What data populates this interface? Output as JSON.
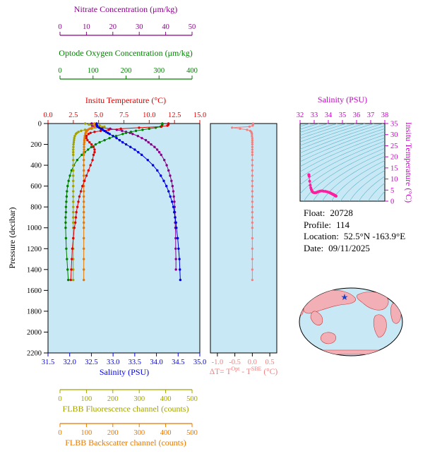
{
  "info": {
    "lines": [
      {
        "label": "Float:",
        "value": "20728"
      },
      {
        "label": "Profile:",
        "value": "114"
      },
      {
        "label": "Location:",
        "value": "52.5°N  -163.9°E"
      },
      {
        "label": "Date:",
        "value": "09/11/2025"
      }
    ]
  },
  "chart_data": {
    "type": "line",
    "main_profile": {
      "ylabel": "Pressure (decibar)",
      "ylim": [
        0,
        2200
      ],
      "yticks": [
        0,
        200,
        400,
        600,
        800,
        1000,
        1200,
        1400,
        1600,
        1800,
        2000,
        2200
      ],
      "ytick_labels": [
        "0",
        "200",
        "400",
        "600",
        "800",
        "1000",
        "1200",
        "1400",
        "1600",
        "1800",
        "2000",
        "2200"
      ],
      "background": "#c9e8f6",
      "pressure": [
        0,
        10,
        20,
        30,
        40,
        50,
        60,
        70,
        80,
        90,
        100,
        120,
        140,
        160,
        180,
        200,
        225,
        250,
        275,
        300,
        350,
        400,
        450,
        500,
        550,
        600,
        650,
        700,
        750,
        800,
        850,
        900,
        950,
        1000,
        1100,
        1200,
        1300,
        1400,
        1500
      ],
      "axes": {
        "nitrate": {
          "title": "Nitrate Concentration (μm/kg)",
          "color": "#8b008b",
          "range": [
            0,
            50
          ],
          "ticks": [
            0,
            10,
            20,
            30,
            40,
            50
          ],
          "tick_labels": [
            "0",
            "10",
            "20",
            "30",
            "40",
            "50"
          ]
        },
        "oxygen": {
          "title": "Optode Oxygen Concentration (μm/kg)",
          "color": "#008000",
          "range": [
            0,
            400
          ],
          "ticks": [
            0,
            100,
            200,
            300,
            400
          ],
          "tick_labels": [
            "0",
            "100",
            "200",
            "300",
            "400"
          ]
        },
        "temperature": {
          "title": "Insitu Temperature (°C)",
          "color": "#e60000",
          "range": [
            0,
            15
          ],
          "ticks": [
            0,
            2.5,
            5,
            7.5,
            10,
            12.5,
            15
          ],
          "tick_labels": [
            "0.0",
            "2.5",
            "5.0",
            "7.5",
            "10.0",
            "12.5",
            "15.0"
          ]
        },
        "salinity": {
          "title": "Salinity (PSU)",
          "color": "#0000dd",
          "range": [
            31.5,
            35
          ],
          "ticks": [
            31.5,
            32,
            32.5,
            33,
            33.5,
            34,
            34.5,
            35
          ],
          "tick_labels": [
            "31.5",
            "32.0",
            "32.5",
            "33.0",
            "33.5",
            "34.0",
            "34.5",
            "35.0"
          ]
        },
        "fluorescence": {
          "title": "FLBB Fluorescence channel (counts)",
          "color": "#a3a300",
          "range": [
            0,
            500
          ],
          "ticks": [
            0,
            100,
            200,
            300,
            400,
            500
          ],
          "tick_labels": [
            "0",
            "100",
            "200",
            "300",
            "400",
            "500"
          ]
        },
        "backscatter": {
          "title": "FLBB Backscatter channel (counts)",
          "color": "#e87800",
          "range": [
            0,
            500
          ],
          "ticks": [
            0,
            100,
            200,
            300,
            400,
            500
          ],
          "tick_labels": [
            "0",
            "100",
            "200",
            "300",
            "400",
            "500"
          ]
        }
      },
      "series": [
        {
          "name": "Nitrate",
          "axis": "nitrate",
          "color": "#8b008b",
          "values": [
            12,
            12,
            12.2,
            13,
            16,
            19,
            21.5,
            23.5,
            25,
            26.5,
            27.5,
            29.5,
            31,
            32.5,
            33.5,
            34.5,
            35.8,
            36.8,
            37.6,
            38.3,
            39.5,
            40.4,
            41.1,
            41.7,
            42.2,
            42.6,
            42.9,
            43.1,
            43.3,
            43.4,
            43.5,
            43.6,
            43.6,
            43.7,
            43.8,
            43.8,
            43.9,
            43.9,
            null
          ]
        },
        {
          "name": "Optode Oxygen",
          "axis": "oxygen",
          "color": "#008000",
          "values": [
            310,
            310,
            309,
            305,
            290,
            270,
            250,
            230,
            215,
            200,
            190,
            170,
            150,
            135,
            120,
            108,
            95,
            85,
            75,
            66,
            52,
            42,
            35,
            30,
            26,
            23,
            21,
            20,
            19,
            18,
            18,
            17,
            17,
            17,
            18,
            19,
            21,
            23,
            25
          ]
        },
        {
          "name": "FLBB Fluorescence",
          "axis": "fluorescence",
          "color": "#a3a300",
          "values": [
            95,
            110,
            150,
            168,
            150,
            120,
            95,
            80,
            70,
            64,
            60,
            56,
            54,
            53,
            52,
            51,
            50.5,
            50,
            50,
            50,
            50,
            50,
            50,
            50,
            50,
            50,
            50,
            50,
            50,
            50,
            50,
            50,
            50,
            50,
            50,
            50,
            50,
            50,
            50
          ]
        },
        {
          "name": "FLBB Backscatter",
          "axis": "backscatter",
          "color": "#e87800",
          "values": [
            130,
            134,
            140,
            132,
            120,
            112,
            106,
            102,
            99,
            97,
            96,
            94,
            93,
            92,
            92,
            91,
            91,
            91,
            90,
            90,
            90,
            90,
            90,
            90,
            90,
            90,
            90,
            90,
            90,
            90,
            90,
            90,
            90,
            90,
            90,
            90,
            90,
            90,
            90
          ]
        },
        {
          "name": "Insitu Temperature",
          "axis": "temperature",
          "color": "#e60000",
          "values": [
            11.9,
            11.9,
            11.8,
            11.2,
            9.0,
            7.2,
            6.0,
            5.2,
            4.6,
            4.2,
            4.0,
            3.8,
            3.8,
            3.9,
            4.1,
            4.3,
            4.5,
            4.6,
            4.6,
            4.5,
            4.4,
            4.2,
            4.0,
            3.8,
            3.6,
            3.4,
            3.25,
            3.1,
            3.0,
            2.9,
            2.8,
            2.75,
            2.7,
            2.6,
            2.5,
            2.4,
            2.35,
            2.3,
            2.25
          ]
        },
        {
          "name": "Salinity",
          "axis": "salinity",
          "color": "#0000dd",
          "values": [
            32.62,
            32.62,
            32.63,
            32.64,
            32.68,
            32.72,
            32.76,
            32.8,
            32.84,
            32.88,
            32.92,
            33.0,
            33.08,
            33.15,
            33.22,
            33.3,
            33.4,
            33.5,
            33.58,
            33.66,
            33.8,
            33.92,
            34.02,
            34.1,
            34.17,
            34.23,
            34.28,
            34.32,
            34.36,
            34.39,
            34.41,
            34.43,
            34.45,
            34.46,
            34.49,
            34.51,
            34.53,
            34.54,
            34.55
          ]
        }
      ]
    },
    "delta_panel": {
      "title_t1": "ΔT= T",
      "title_sup1": "Opt",
      "title_t2": " - T",
      "title_sup2": "SBE",
      "title_t3": " (°C)",
      "color": "#f08080",
      "background": "#c9e8f6",
      "xlim": [
        -1.2,
        0.7
      ],
      "xticks": [
        -1.0,
        -0.5,
        0.0,
        0.5
      ],
      "xtick_labels": [
        "-1.0",
        "-0.5",
        "0.0",
        "0.5"
      ],
      "values": [
        0.02,
        0.02,
        0.01,
        -0.08,
        -0.58,
        -0.35,
        -0.15,
        -0.06,
        -0.03,
        -0.02,
        -0.01,
        -0.01,
        0,
        0,
        0,
        0,
        0,
        0,
        0,
        0,
        0,
        0,
        0,
        0,
        0,
        0,
        0,
        0,
        0,
        0,
        0,
        0,
        0,
        0,
        0,
        0,
        0,
        0,
        0
      ]
    },
    "ts_panel": {
      "title": "Salinity (PSU)",
      "right_title": "Insitu Temperature (°C)",
      "color": "#cc00cc",
      "dot_color": "#ff1f9e",
      "background": "#c9e8f6",
      "xlim": [
        32,
        38
      ],
      "xticks": [
        32,
        33,
        34,
        35,
        36,
        37,
        38
      ],
      "xtick_labels": [
        "32",
        "33",
        "34",
        "35",
        "36",
        "37",
        "38"
      ],
      "ylim": [
        0,
        35
      ],
      "yticks": [
        0,
        5,
        10,
        15,
        20,
        25,
        30,
        35
      ],
      "ytick_labels": [
        "0",
        "5",
        "10",
        "15",
        "20",
        "25",
        "30",
        "35"
      ],
      "contours": {
        "min": 18,
        "max": 30,
        "step": 0.5,
        "color": "#58b6c6"
      }
    },
    "map": {
      "ocean_color": "#c9e8f6",
      "land_color": "#f2afb6",
      "outline_color": "#c23b3b",
      "star_color": "#1f3fbf"
    }
  }
}
